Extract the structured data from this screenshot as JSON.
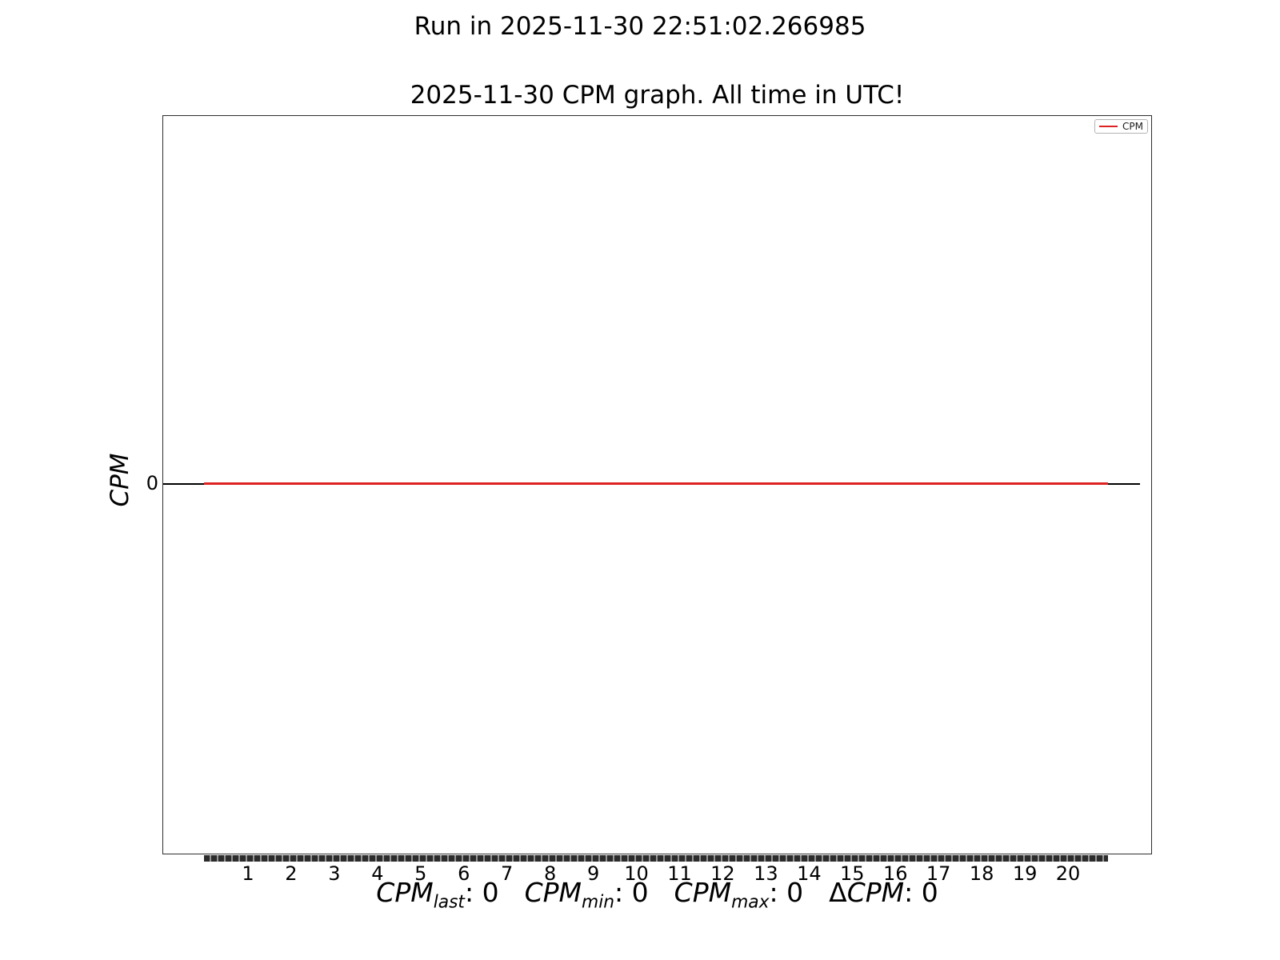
{
  "figure": {
    "suptitle": "Run in 2025-11-30 22:51:02.266985",
    "axes_title": "2025-11-30 CPM graph. All time in UTC!",
    "ylabel": "CPM",
    "ytick": "0",
    "xtick_labels": [
      "1",
      "2",
      "3",
      "4",
      "5",
      "6",
      "7",
      "8",
      "9",
      "10",
      "11",
      "12",
      "13",
      "14",
      "15",
      "16",
      "17",
      "18",
      "19",
      "20"
    ],
    "legend": {
      "label": "CPM"
    },
    "stats": [
      {
        "prefix": "",
        "base": "CPM",
        "sub": "last",
        "value": "0"
      },
      {
        "prefix": "",
        "base": "CPM",
        "sub": "min",
        "value": "0"
      },
      {
        "prefix": "",
        "base": "CPM",
        "sub": "max",
        "value": "0"
      },
      {
        "prefix": "Δ",
        "base": "CPM",
        "sub": "",
        "value": "0"
      }
    ],
    "colors": {
      "line": "#dd2222",
      "zero_line": "#000000",
      "spine": "#2e2e2e"
    }
  },
  "chart_data": {
    "type": "line",
    "title": "2025-11-30 CPM graph. All time in UTC!",
    "figure_title": "Run in 2025-11-30 22:51:02.266985",
    "ylabel": "CPM",
    "xlabel": "CPM_last: 0   CPM_min: 0   CPM_max: 0   ΔCPM: 0",
    "x": [
      1,
      2,
      3,
      4,
      5,
      6,
      7,
      8,
      9,
      10,
      11,
      12,
      13,
      14,
      15,
      16,
      17,
      18,
      19,
      20
    ],
    "series": [
      {
        "name": "CPM",
        "color": "#dd2222",
        "values": [
          0,
          0,
          0,
          0,
          0,
          0,
          0,
          0,
          0,
          0,
          0,
          0,
          0,
          0,
          0,
          0,
          0,
          0,
          0,
          0
        ]
      }
    ],
    "y_tick_labels": [
      "0"
    ],
    "x_tick_labels": [
      "1",
      "2",
      "3",
      "4",
      "5",
      "6",
      "7",
      "8",
      "9",
      "10",
      "11",
      "12",
      "13",
      "14",
      "15",
      "16",
      "17",
      "18",
      "19",
      "20"
    ],
    "legend_entries": [
      "CPM"
    ],
    "legend_position": "upper right",
    "grid": false,
    "zero_reference_line": true,
    "stats": {
      "CPM_last": 0,
      "CPM_min": 0,
      "CPM_max": 0,
      "delta_CPM": 0
    }
  }
}
